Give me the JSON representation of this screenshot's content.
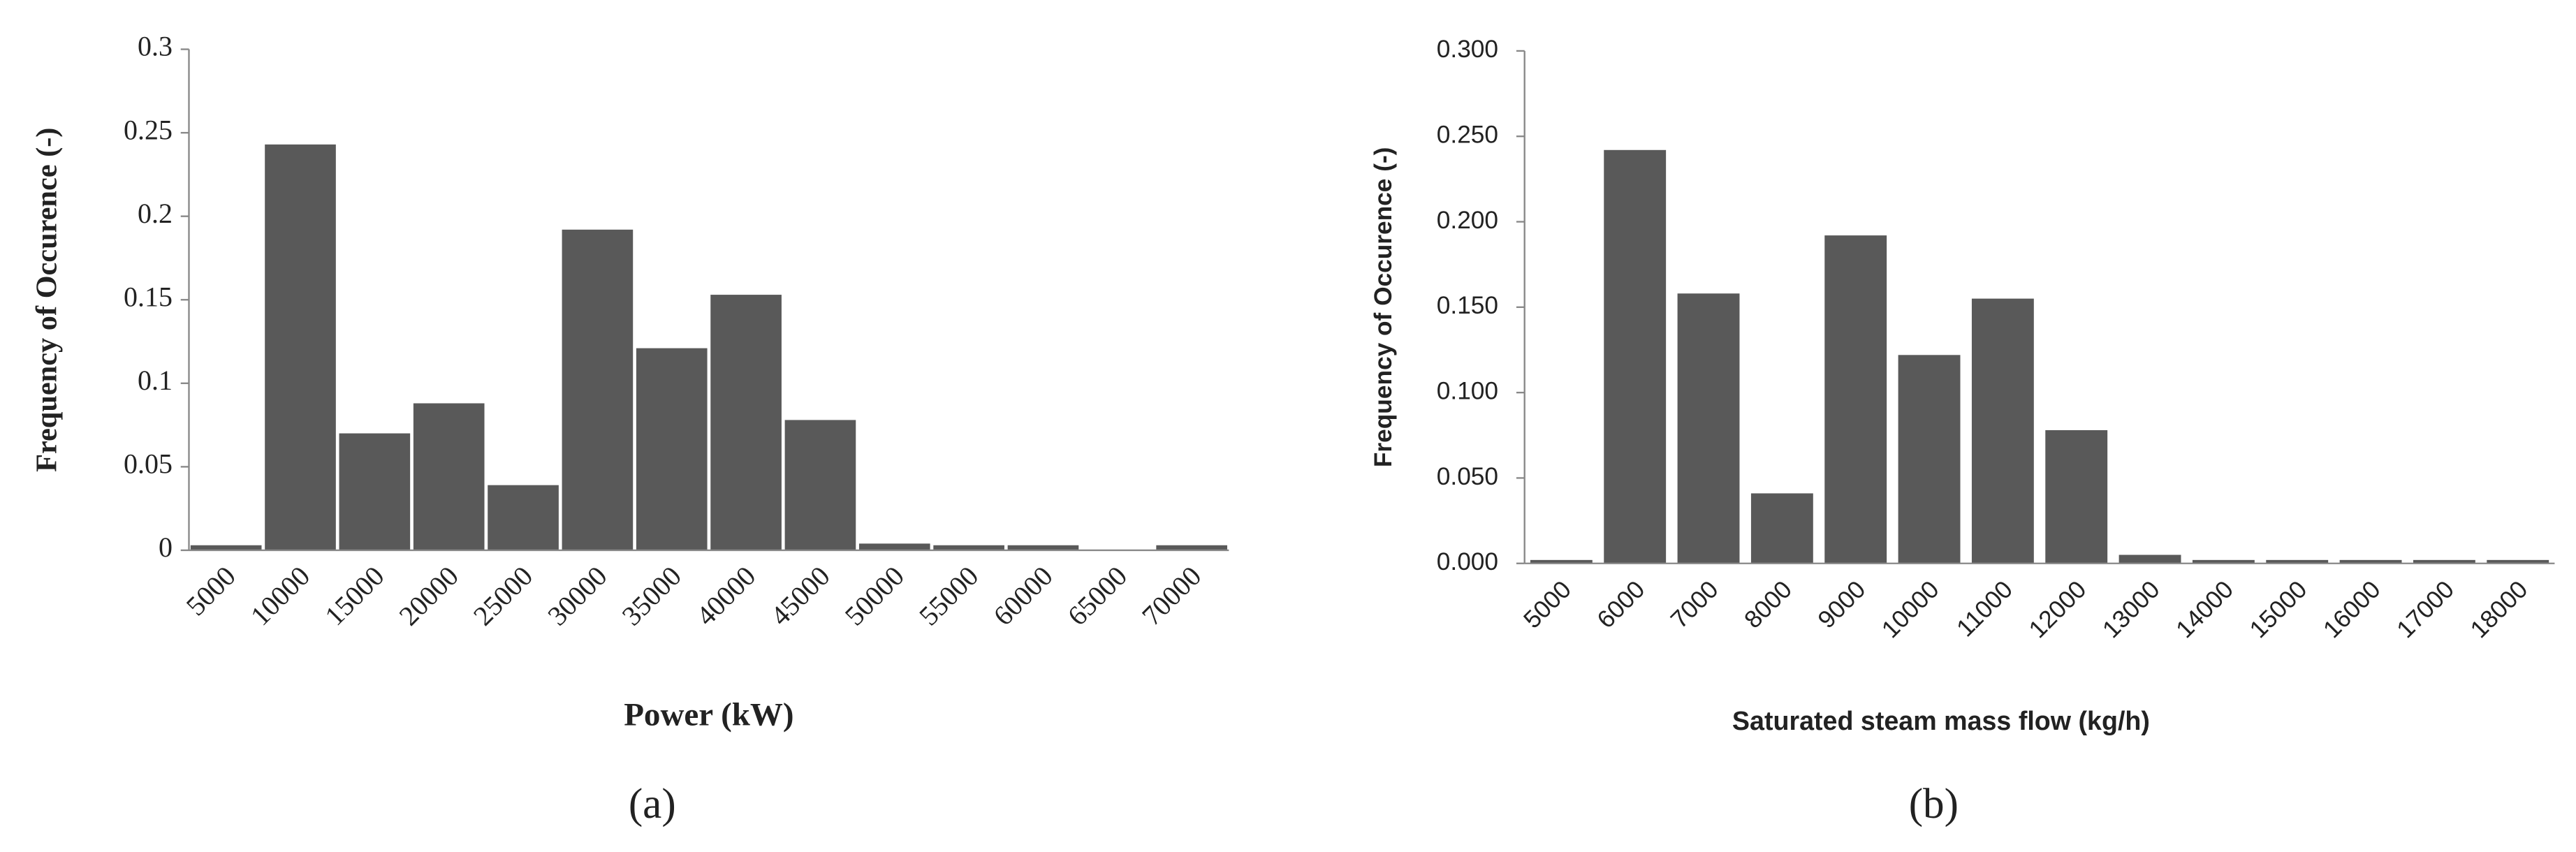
{
  "chart_data": [
    {
      "type": "bar",
      "caption": "(a)",
      "y_label": "Frequency of Occurence  (-)",
      "x_label": "Power (kW)",
      "categories": [
        "5000",
        "10000",
        "15000",
        "20000",
        "25000",
        "30000",
        "35000",
        "40000",
        "45000",
        "50000",
        "55000",
        "60000",
        "65000",
        "70000"
      ],
      "values": [
        0.003,
        0.243,
        0.07,
        0.088,
        0.039,
        0.192,
        0.121,
        0.153,
        0.078,
        0.004,
        0.003,
        0.003,
        0,
        0.003
      ],
      "color": "#595959",
      "ylim": [
        0,
        0.3
      ],
      "yticks": [
        0,
        0.05,
        0.1,
        0.15,
        0.2,
        0.25,
        0.3
      ]
    },
    {
      "type": "bar",
      "caption": "(b)",
      "y_label": "Frequency of Occurence  (-)",
      "x_label": "Saturated steam mass flow (kg/h)",
      "categories": [
        "5000",
        "6000",
        "7000",
        "8000",
        "9000",
        "10000",
        "11000",
        "12000",
        "13000",
        "14000",
        "15000",
        "16000",
        "17000",
        "18000"
      ],
      "values": [
        0.002,
        0.242,
        0.158,
        0.041,
        0.192,
        0.122,
        0.155,
        0.078,
        0.005,
        0.002,
        0.002,
        0.002,
        0.002,
        0.002
      ],
      "color": "#595959",
      "ylim": [
        0,
        0.3
      ],
      "yticks": [
        {
          "value": 0,
          "label": "0.000"
        },
        {
          "value": 0.05,
          "label": "0.050"
        },
        {
          "value": 0.1,
          "label": "0.100"
        },
        {
          "value": 0.15,
          "label": "0.150"
        },
        {
          "value": 0.2,
          "label": "0.200"
        },
        {
          "value": 0.25,
          "label": "0.250"
        },
        {
          "value": 0.3,
          "label": "0.300"
        }
      ]
    }
  ]
}
